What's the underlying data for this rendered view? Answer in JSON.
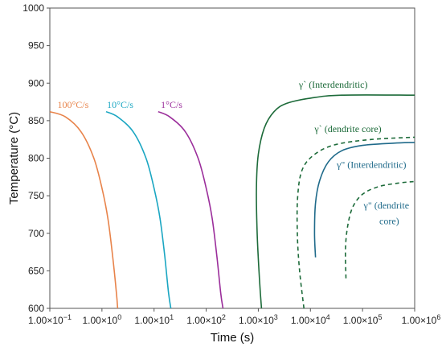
{
  "chart_data": {
    "type": "line",
    "xlabel": "Time (s)",
    "ylabel": "Temperature (°C)",
    "x_scale": "log",
    "xlim": [
      0.1,
      1000000
    ],
    "ylim": [
      600,
      1000
    ],
    "x_ticks": [
      {
        "value": 0.1,
        "mant": "1.00×10",
        "exp": "−1"
      },
      {
        "value": 1,
        "mant": "1.00×10",
        "exp": "0"
      },
      {
        "value": 10,
        "mant": "1.00×10",
        "exp": "1"
      },
      {
        "value": 100,
        "mant": "1.00×10",
        "exp": "2"
      },
      {
        "value": 1000,
        "mant": "1.00×10",
        "exp": "3"
      },
      {
        "value": 10000,
        "mant": "1.00×10",
        "exp": "4"
      },
      {
        "value": 100000,
        "mant": "1.00×10",
        "exp": "5"
      },
      {
        "value": 1000000,
        "mant": "1.00×10",
        "exp": "6"
      }
    ],
    "y_ticks": [
      "600",
      "650",
      "700",
      "750",
      "800",
      "850",
      "900",
      "950",
      "1000"
    ],
    "grid": false,
    "series": [
      {
        "name": "100°C/s",
        "color": "#e8834a",
        "style": "solid",
        "points": [
          [
            0.1,
            862
          ],
          [
            0.2,
            855
          ],
          [
            0.4,
            835
          ],
          [
            0.7,
            800
          ],
          [
            1.0,
            760
          ],
          [
            1.3,
            720
          ],
          [
            1.6,
            670
          ],
          [
            1.9,
            620
          ],
          [
            2.0,
            600
          ]
        ]
      },
      {
        "name": "10°C/s",
        "color": "#1aa6c2",
        "style": "solid",
        "points": [
          [
            1.2,
            862
          ],
          [
            2,
            855
          ],
          [
            4,
            835
          ],
          [
            7,
            800
          ],
          [
            10,
            760
          ],
          [
            13,
            720
          ],
          [
            16,
            670
          ],
          [
            19,
            620
          ],
          [
            21,
            600
          ]
        ]
      },
      {
        "name": "1°C/s",
        "color": "#9b2e9b",
        "style": "solid",
        "points": [
          [
            12,
            862
          ],
          [
            20,
            855
          ],
          [
            40,
            835
          ],
          [
            70,
            800
          ],
          [
            100,
            760
          ],
          [
            130,
            720
          ],
          [
            160,
            670
          ],
          [
            190,
            620
          ],
          [
            210,
            600
          ]
        ]
      }
    ],
    "curves": [
      {
        "name": "γˋ (Interdendritic)",
        "color": "#1d6b3a",
        "style": "solid",
        "points": [
          [
            1150,
            600
          ],
          [
            1050,
            640
          ],
          [
            950,
            700
          ],
          [
            920,
            760
          ],
          [
            1000,
            805
          ],
          [
            1300,
            840
          ],
          [
            2000,
            862
          ],
          [
            3500,
            873
          ],
          [
            10000,
            880
          ],
          [
            40000,
            884
          ],
          [
            1000000,
            884
          ]
        ]
      },
      {
        "name": "γˋ (dendrite core)",
        "color": "#1d6b3a",
        "style": "dashed",
        "points": [
          [
            7500,
            600
          ],
          [
            6200,
            650
          ],
          [
            5600,
            700
          ],
          [
            5700,
            750
          ],
          [
            7000,
            785
          ],
          [
            12000,
            805
          ],
          [
            30000,
            818
          ],
          [
            150000,
            825
          ],
          [
            1000000,
            828
          ]
        ]
      },
      {
        "name": "γ\" (Interdendritic)",
        "color": "#1f6a8a",
        "style": "solid",
        "points": [
          [
            12500,
            668
          ],
          [
            12000,
            700
          ],
          [
            12500,
            740
          ],
          [
            15000,
            770
          ],
          [
            22000,
            795
          ],
          [
            40000,
            810
          ],
          [
            100000,
            817
          ],
          [
            400000,
            820
          ],
          [
            1000000,
            821
          ]
        ]
      },
      {
        "name": "γ\" (dendrite core)",
        "color": "#1d6b3a",
        "style": "dashed",
        "points": [
          [
            48000,
            640
          ],
          [
            47000,
            680
          ],
          [
            52000,
            710
          ],
          [
            65000,
            735
          ],
          [
            100000,
            752
          ],
          [
            200000,
            762
          ],
          [
            500000,
            767
          ],
          [
            1000000,
            769
          ]
        ]
      }
    ],
    "annotations": [
      {
        "text": "100°C/s",
        "color": "#e8834a",
        "x": 0.14,
        "y": 867
      },
      {
        "text": "10°C/s",
        "color": "#1aa6c2",
        "x": 1.25,
        "y": 867
      },
      {
        "text": "1°C/s",
        "color": "#9b2e9b",
        "x": 13.5,
        "y": 867
      },
      {
        "text": "γˋ (Interdendritic)",
        "color": "#1d6b3a",
        "x": 6000,
        "y": 894
      },
      {
        "text": "γˋ (dendrite core)",
        "color": "#1d6b3a",
        "x": 12000,
        "y": 835
      },
      {
        "text": "γ\" (Interdendritic)",
        "color": "#1f6a8a",
        "x": 32000,
        "y": 787
      },
      {
        "text": "γ\" (dendrite",
        "color": "#1f6a8a",
        "x": 105000,
        "y": 733
      },
      {
        "text": "core)",
        "color": "#1f6a8a",
        "x": 210000,
        "y": 712
      }
    ]
  }
}
